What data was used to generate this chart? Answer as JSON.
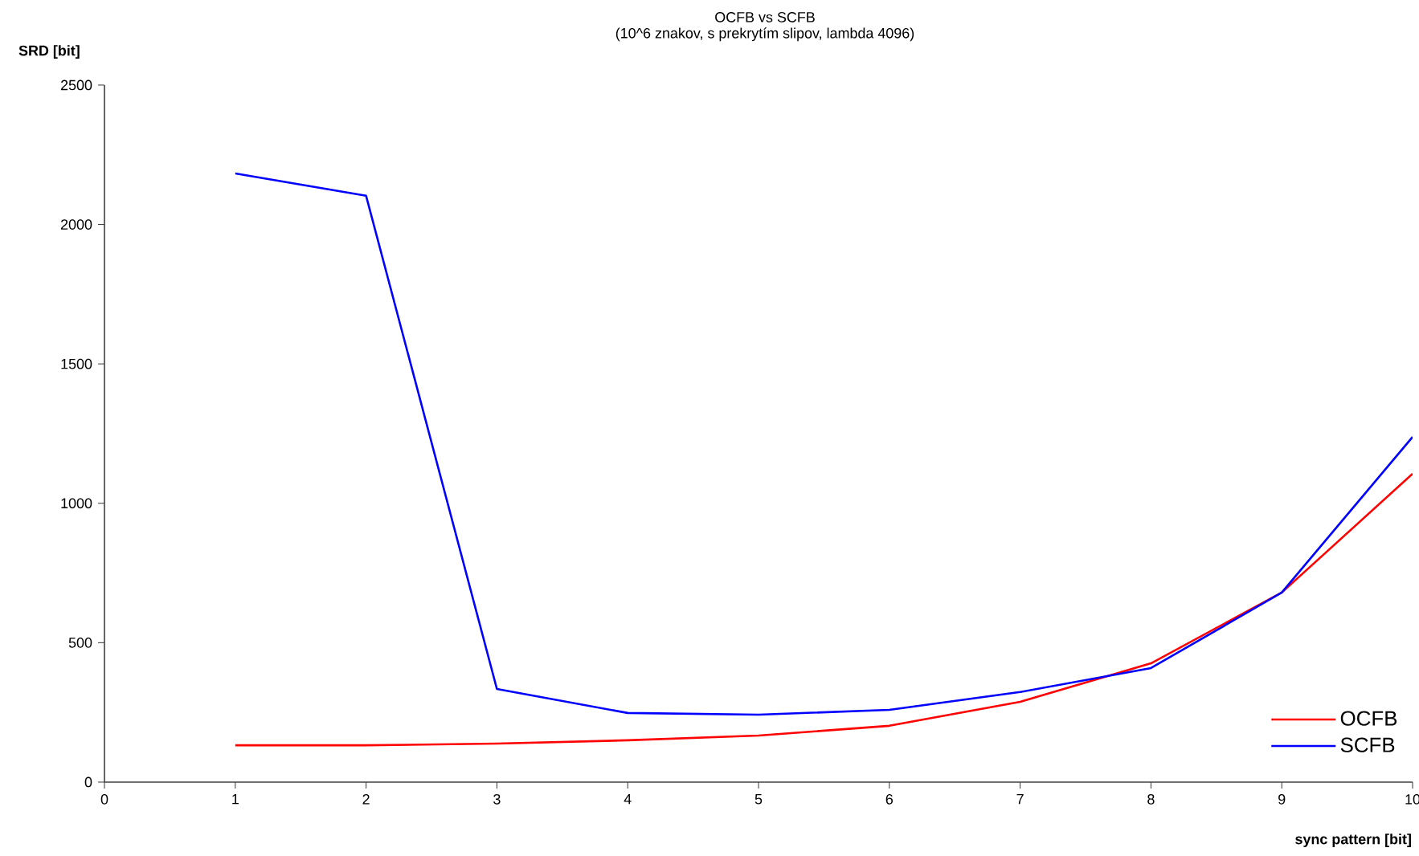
{
  "chart_data": {
    "type": "line",
    "title": "OCFB vs SCFB",
    "subtitle": "(10^6 znakov, s prekrytím slipov, lambda 4096)",
    "xlabel": "sync pattern [bit]",
    "ylabel": "SRD [bit]",
    "x": [
      1,
      2,
      3,
      4,
      5,
      6,
      7,
      8,
      9,
      10
    ],
    "series": [
      {
        "name": "OCFB",
        "color": "#ff0000",
        "values": [
          132,
          132,
          138,
          150,
          167,
          202,
          288,
          426,
          680,
          1106
        ]
      },
      {
        "name": "SCFB",
        "color": "#0000ff",
        "values": [
          2183,
          2103,
          334,
          248,
          242,
          259,
          323,
          409,
          680,
          1238
        ]
      }
    ],
    "xlim": [
      0,
      10
    ],
    "ylim": [
      0,
      2500
    ],
    "xticks": [
      0,
      1,
      2,
      3,
      4,
      5,
      6,
      7,
      8,
      9,
      10
    ],
    "yticks": [
      0,
      500,
      1000,
      1500,
      2000,
      2500
    ],
    "grid": false,
    "legend": "bottom right",
    "marker": "none",
    "line_style": "solid"
  }
}
